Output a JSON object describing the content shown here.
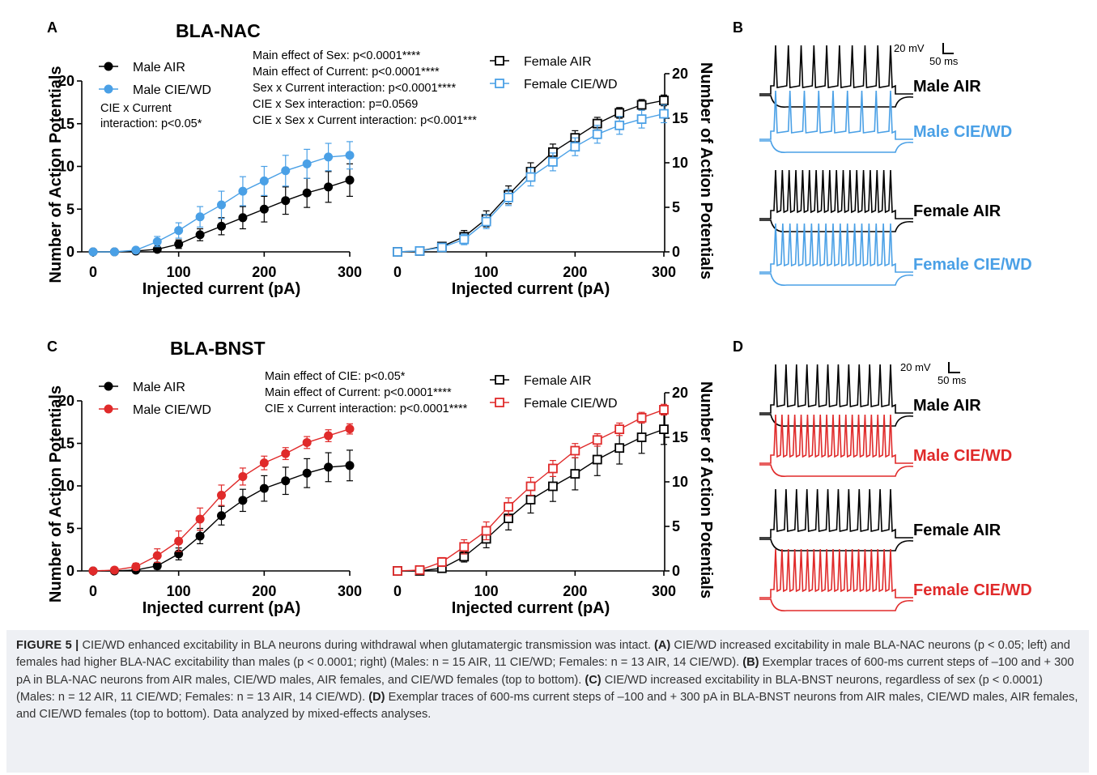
{
  "panels": {
    "A": {
      "letter": "A",
      "title": "BLA-NAC"
    },
    "B": {
      "letter": "B"
    },
    "C": {
      "letter": "C",
      "title": "BLA-BNST"
    },
    "D": {
      "letter": "D"
    }
  },
  "colors": {
    "black": "#000000",
    "blue": "#4aa0e6",
    "red": "#e02a2a"
  },
  "scalebar": {
    "voltage": "20 mV",
    "time": "50 ms"
  },
  "traces_B": [
    "Male AIR",
    "Male CIE/WD",
    "Female AIR",
    "Female CIE/WD"
  ],
  "traces_D": [
    "Male AIR",
    "Male CIE/WD",
    "Female AIR",
    "Female CIE/WD"
  ],
  "chart_data": [
    {
      "id": "A-left",
      "type": "line",
      "xlabel": "Injected current (pA)",
      "ylabel": "Number of Action Potentials",
      "xlim": [
        0,
        300
      ],
      "ylim": [
        0,
        20
      ],
      "xticks": [
        0,
        100,
        200,
        300
      ],
      "yticks": [
        0,
        5,
        10,
        15,
        20
      ],
      "x": [
        0,
        25,
        50,
        75,
        100,
        125,
        150,
        175,
        200,
        225,
        250,
        275,
        300
      ],
      "series": [
        {
          "name": "Male AIR",
          "marker": "filled-circle",
          "color": "#000000",
          "values": [
            0,
            0,
            0.1,
            0.3,
            0.9,
            2.0,
            3.0,
            4.0,
            5.0,
            6.0,
            6.9,
            7.6,
            8.4
          ],
          "errors": [
            0,
            0,
            0.1,
            0.2,
            0.5,
            0.7,
            1.0,
            1.3,
            1.5,
            1.6,
            1.7,
            1.8,
            1.9
          ]
        },
        {
          "name": "Male CIE/WD",
          "marker": "filled-circle",
          "color": "#4aa0e6",
          "values": [
            0,
            0,
            0.2,
            1.2,
            2.5,
            4.1,
            5.5,
            7.1,
            8.3,
            9.5,
            10.3,
            11.1,
            11.3
          ],
          "errors": [
            0,
            0,
            0.2,
            0.6,
            0.9,
            1.2,
            1.6,
            1.7,
            1.7,
            1.8,
            1.7,
            1.6,
            1.6
          ]
        }
      ],
      "annotation": [
        "CIE x Current",
        "interaction: p<0.05*"
      ]
    },
    {
      "id": "A-right",
      "type": "line",
      "xlabel": "Injected current (pA)",
      "ylabel": "Number of Action Potentials",
      "xlim": [
        0,
        300
      ],
      "ylim": [
        0,
        20
      ],
      "xticks": [
        0,
        100,
        200,
        300
      ],
      "yticks": [
        0,
        5,
        10,
        15,
        20
      ],
      "x": [
        0,
        25,
        50,
        75,
        100,
        125,
        150,
        175,
        200,
        225,
        250,
        275,
        300
      ],
      "series": [
        {
          "name": "Female AIR",
          "marker": "open-square",
          "color": "#000000",
          "values": [
            0,
            0.1,
            0.6,
            1.7,
            3.7,
            6.4,
            9.0,
            11.2,
            12.8,
            14.4,
            15.6,
            16.5,
            17.0
          ],
          "errors": [
            0,
            0.1,
            0.3,
            0.7,
            0.9,
            1.0,
            1.0,
            0.9,
            0.8,
            0.7,
            0.6,
            0.6,
            0.6
          ]
        },
        {
          "name": "Female CIE/WD",
          "marker": "open-square",
          "color": "#4aa0e6",
          "values": [
            0,
            0.1,
            0.5,
            1.4,
            3.4,
            6.1,
            8.4,
            10.1,
            11.8,
            13.2,
            14.2,
            14.9,
            15.5
          ],
          "errors": [
            0,
            0.1,
            0.3,
            0.6,
            0.8,
            0.9,
            1.0,
            1.0,
            1.0,
            1.0,
            1.0,
            1.0,
            1.0
          ]
        }
      ],
      "annotation": [
        "Main effect of Sex: p<0.0001****",
        "Main effect of Current: p<0.0001****",
        "Sex x Current interaction: p<0.0001****",
        "CIE x Sex interaction: p=0.0569",
        "CIE x Sex x Current interaction: p<0.001***"
      ]
    },
    {
      "id": "C-left",
      "type": "line",
      "xlabel": "Injected current (pA)",
      "ylabel": "Number of Action Potentials",
      "xlim": [
        0,
        300
      ],
      "ylim": [
        0,
        20
      ],
      "xticks": [
        0,
        100,
        200,
        300
      ],
      "yticks": [
        0,
        5,
        10,
        15,
        20
      ],
      "x": [
        0,
        25,
        50,
        75,
        100,
        125,
        150,
        175,
        200,
        225,
        250,
        275,
        300
      ],
      "series": [
        {
          "name": "Male AIR",
          "marker": "filled-circle",
          "color": "#000000",
          "values": [
            0,
            0,
            0.1,
            0.6,
            2.0,
            4.1,
            6.5,
            8.3,
            9.7,
            10.6,
            11.5,
            12.2,
            12.4
          ],
          "errors": [
            0,
            0,
            0.1,
            0.4,
            0.7,
            0.9,
            1.1,
            1.3,
            1.5,
            1.6,
            1.7,
            1.7,
            1.8
          ]
        },
        {
          "name": "Male CIE/WD",
          "marker": "filled-circle",
          "color": "#e02a2a",
          "values": [
            0,
            0.1,
            0.5,
            1.8,
            3.5,
            6.1,
            8.9,
            11.1,
            12.7,
            13.8,
            15.1,
            15.9,
            16.7
          ],
          "errors": [
            0,
            0.1,
            0.4,
            0.8,
            1.2,
            1.3,
            1.2,
            1.0,
            0.8,
            0.7,
            0.7,
            0.7,
            0.6
          ]
        }
      ],
      "annotation": []
    },
    {
      "id": "C-right",
      "type": "line",
      "xlabel": "Injected current (pA)",
      "ylabel": "Number of Action Potentials",
      "xlim": [
        0,
        300
      ],
      "ylim": [
        0,
        20
      ],
      "xticks": [
        0,
        100,
        200,
        300
      ],
      "yticks": [
        0,
        5,
        10,
        15,
        20
      ],
      "x": [
        0,
        25,
        50,
        75,
        100,
        125,
        150,
        175,
        200,
        225,
        250,
        275,
        300
      ],
      "series": [
        {
          "name": "Female AIR",
          "marker": "open-square",
          "color": "#000000",
          "values": [
            0,
            0,
            0.3,
            1.6,
            3.6,
            5.9,
            8.0,
            9.5,
            10.9,
            12.5,
            13.8,
            15.0,
            15.9
          ],
          "errors": [
            0,
            0,
            0.2,
            0.6,
            1.0,
            1.3,
            1.5,
            1.7,
            1.8,
            1.8,
            1.8,
            1.8,
            1.7
          ]
        },
        {
          "name": "Female CIE/WD",
          "marker": "open-square",
          "color": "#e02a2a",
          "values": [
            0,
            0.1,
            1.0,
            2.7,
            4.5,
            7.2,
            9.5,
            11.5,
            13.5,
            14.7,
            15.9,
            17.2,
            18.1
          ],
          "errors": [
            0,
            0.1,
            0.5,
            0.8,
            1.0,
            1.0,
            1.0,
            0.9,
            0.8,
            0.7,
            0.7,
            0.6,
            0.6
          ]
        }
      ],
      "annotation": [
        "Main effect of CIE: p<0.05*",
        "Main effect of Current: p<0.0001****",
        "CIE x Current interaction: p<0.0001****"
      ]
    }
  ],
  "caption": {
    "figure_label": "FIGURE 5 |",
    "intro": " CIE/WD enhanced excitability in BLA neurons during withdrawal when glutamatergic transmission was intact. ",
    "a_label": "(A)",
    "a_text": " CIE/WD increased excitability in male BLA-NAC neurons (p < 0.05; left) and females had higher BLA-NAC excitability than males (p < 0.0001; right) (Males: n = 15 AIR, 11 CIE/WD; Females: n = 13 AIR, 14 CIE/WD). ",
    "b_label": "(B)",
    "b_text": " Exemplar traces of 600-ms current steps of –100 and + 300 pA in BLA-NAC neurons from AIR males, CIE/WD males, AIR females, and CIE/WD females (top to bottom). ",
    "c_label": "(C)",
    "c_text": " CIE/WD increased excitability in BLA-BNST neurons, regardless of sex (p < 0.0001) (Males: n = 12 AIR, 11 CIE/WD; Females: n = 13 AIR, 14 CIE/WD). ",
    "d_label": "(D)",
    "d_text": " Exemplar traces of 600-ms current steps of –100 and + 300 pA in BLA-BNST neurons from AIR males, CIE/WD males, AIR females, and CIE/WD females (top to bottom). Data analyzed by mixed-effects analyses."
  }
}
